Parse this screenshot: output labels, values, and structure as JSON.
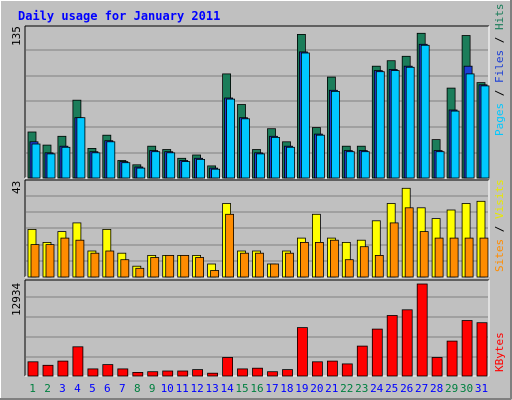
{
  "chart_data": [
    {
      "type": "bar",
      "panel": "hits-files-pages",
      "title": "Daily usage for January 2011",
      "categories": [
        "1",
        "2",
        "3",
        "4",
        "5",
        "6",
        "7",
        "8",
        "9",
        "10",
        "11",
        "12",
        "13",
        "14",
        "15",
        "16",
        "17",
        "18",
        "19",
        "20",
        "21",
        "22",
        "23",
        "24",
        "25",
        "26",
        "27",
        "28",
        "29",
        "30",
        "31"
      ],
      "y_scale_label": "135",
      "ylim": [
        0,
        135
      ],
      "series": [
        {
          "name": "Hits",
          "color": "#1b7d5a",
          "values": [
            42,
            30,
            38,
            71,
            27,
            39,
            16,
            12,
            29,
            26,
            18,
            21,
            11,
            95,
            67,
            26,
            45,
            33,
            131,
            46,
            92,
            29,
            29,
            102,
            107,
            111,
            132,
            35,
            82,
            130,
            87
          ]
        },
        {
          "name": "Files",
          "color": "#1c3fd4",
          "values": [
            33,
            23,
            29,
            55,
            24,
            34,
            15,
            10,
            25,
            24,
            16,
            18,
            9,
            73,
            55,
            23,
            38,
            29,
            115,
            40,
            80,
            25,
            25,
            98,
            99,
            102,
            122,
            25,
            62,
            102,
            85
          ]
        },
        {
          "name": "Pages",
          "color": "#00c8ff",
          "values": [
            31,
            22,
            28,
            55,
            23,
            33,
            14,
            9,
            24,
            23,
            15,
            17,
            8,
            72,
            54,
            22,
            37,
            28,
            114,
            39,
            79,
            24,
            24,
            97,
            98,
            101,
            121,
            24,
            61,
            95,
            84
          ]
        }
      ]
    },
    {
      "type": "bar",
      "panel": "visits-sites",
      "categories": [
        "1",
        "2",
        "3",
        "4",
        "5",
        "6",
        "7",
        "8",
        "9",
        "10",
        "11",
        "12",
        "13",
        "14",
        "15",
        "16",
        "17",
        "18",
        "19",
        "20",
        "21",
        "22",
        "23",
        "24",
        "25",
        "26",
        "27",
        "28",
        "29",
        "30",
        "31"
      ],
      "y_scale_label": "43",
      "ylim": [
        0,
        43
      ],
      "series": [
        {
          "name": "Visits",
          "color": "#ffff00",
          "values": [
            22,
            16,
            21,
            25,
            12,
            22,
            11,
            5,
            10,
            10,
            10,
            10,
            6,
            34,
            12,
            12,
            6,
            12,
            18,
            29,
            18,
            16,
            17,
            26,
            34,
            41,
            32,
            27,
            31,
            34,
            35
          ]
        },
        {
          "name": "Sites",
          "color": "#ff8c00",
          "values": [
            15,
            15,
            18,
            17,
            11,
            12,
            8,
            4,
            9,
            10,
            10,
            9,
            3,
            29,
            11,
            11,
            6,
            11,
            16,
            16,
            17,
            8,
            14,
            10,
            25,
            32,
            21,
            18,
            18,
            18,
            18
          ]
        }
      ]
    },
    {
      "type": "bar",
      "panel": "kbytes",
      "categories": [
        "1",
        "2",
        "3",
        "4",
        "5",
        "6",
        "7",
        "8",
        "9",
        "10",
        "11",
        "12",
        "13",
        "14",
        "15",
        "16",
        "17",
        "18",
        "19",
        "20",
        "21",
        "22",
        "23",
        "24",
        "25",
        "26",
        "27",
        "28",
        "29",
        "30",
        "31"
      ],
      "y_scale_label": "12934",
      "ylim": [
        0,
        12934
      ],
      "series": [
        {
          "name": "KBytes",
          "color": "#ff0000",
          "values": [
            2000,
            1500,
            2100,
            4100,
            1000,
            1600,
            1000,
            500,
            600,
            700,
            700,
            900,
            400,
            2600,
            1000,
            1100,
            600,
            900,
            6800,
            2000,
            2100,
            1700,
            4200,
            6600,
            8500,
            9300,
            12934,
            2600,
            4900,
            7800,
            7500
          ]
        }
      ]
    }
  ],
  "legend": {
    "top": [
      {
        "text": "Pages",
        "color": "#00c8ff"
      },
      {
        "text": " / ",
        "color": "#000000"
      },
      {
        "text": "Files",
        "color": "#1c3fd4"
      },
      {
        "text": " / ",
        "color": "#000000"
      },
      {
        "text": "Hits",
        "color": "#1b7d5a"
      }
    ],
    "middle": [
      {
        "text": "Sites",
        "color": "#ff8c00"
      },
      {
        "text": " / ",
        "color": "#000000"
      },
      {
        "text": "Visits",
        "color": "#e8e800"
      }
    ],
    "bottom": [
      {
        "text": "KBytes",
        "color": "#ff0000"
      }
    ]
  },
  "weekend_days": [
    1,
    2,
    8,
    9,
    15,
    16,
    22,
    23,
    29,
    30
  ],
  "colors": {
    "background": "#c0c0c0",
    "plot_bg": "#c0c0c0",
    "title": "#0000ff",
    "weekday_label": "#0000ff",
    "weekend_label": "#008040",
    "gridline": "#808080"
  }
}
